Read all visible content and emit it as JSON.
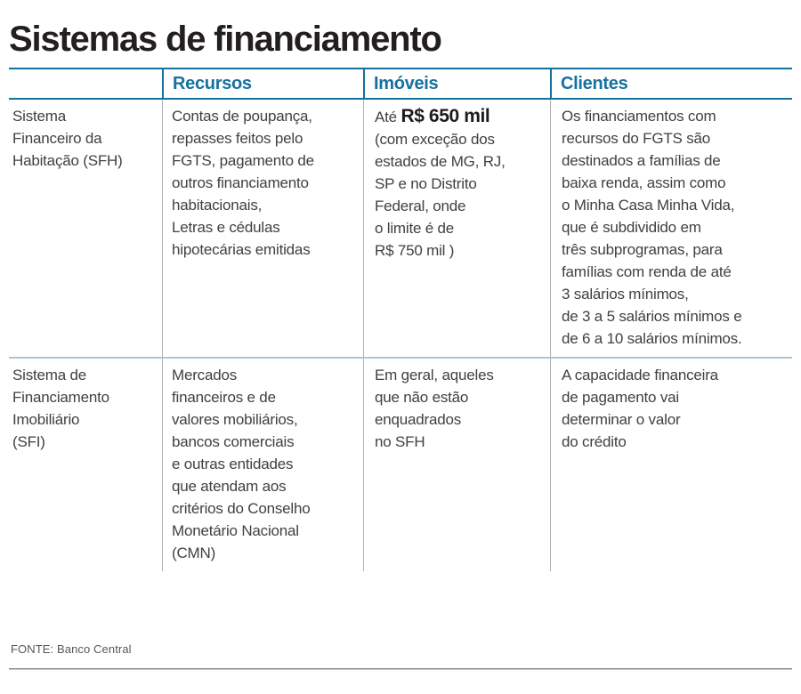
{
  "title": "Sistemas de financiamento",
  "colors": {
    "accent_teal": "#17719E",
    "row_divider_blue": "#A5C8D8",
    "column_separator_gray": "#B2B2B4",
    "body_text": "#414042",
    "title_text": "#231F20",
    "footer_text": "#58585B",
    "footer_rule": "#868686"
  },
  "table": {
    "headers": [
      "Recursos",
      "Imóveis",
      "Clientes"
    ],
    "rows": [
      {
        "label": "Sistema\nFinanceiro da\nHabitação (SFH)",
        "recursos": "Contas de poupança,\nrepasses feitos pelo\nFGTS, pagamento de\noutros financiamento\nhabitacionais,\nLetras e cédulas\nhipotecárias emitidas",
        "imoveis_prefix": "Até ",
        "imoveis_highlight": "R$ 650 mil",
        "imoveis_rest": "(com exceção dos\nestados de MG, RJ,\nSP e no Distrito\nFederal, onde\no limite é de\nR$ 750 mil )",
        "clientes": "Os financiamentos com\nrecursos do FGTS são\ndestinados a famílias de\nbaixa renda, assim como\no Minha Casa Minha Vida,\nque é subdividido em\ntrês subprogramas, para\nfamílias com renda de até\n3 salários mínimos,\nde 3 a 5 salários mínimos e\nde 6 a 10 salários mínimos."
      },
      {
        "label": "Sistema de\nFinanciamento\nImobiliário\n(SFI)",
        "recursos": "Mercados\nfinanceiros e de\nvalores mobiliários,\nbancos comerciais\ne outras entidades\nque atendam aos\ncritérios do Conselho\nMonetário Nacional\n(CMN)",
        "imoveis": "Em geral, aqueles\nque não estão\nenquadrados\nno SFH",
        "clientes": "A capacidade financeira\nde pagamento vai\ndeterminar o valor\ndo crédito"
      }
    ]
  },
  "footer": {
    "source": "FONTE: Banco Central"
  }
}
